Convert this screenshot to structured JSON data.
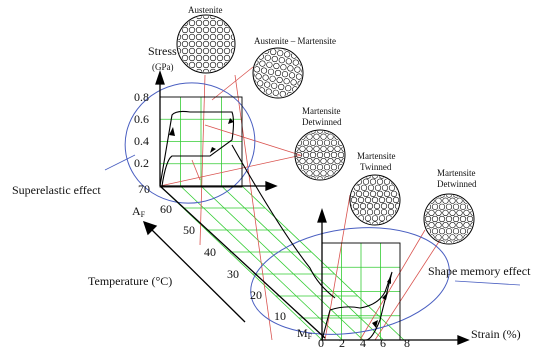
{
  "figure": {
    "y_axis_title": "Stress",
    "y_axis_unit": "(GPa)",
    "x_axis_title": "Strain (%)",
    "temperature_axis_title": "Temperature (°C)",
    "stress_ticks": [
      "0.8",
      "0.6",
      "0.4",
      "0.2"
    ],
    "temperature_ticks": [
      "70",
      "60",
      "50",
      "40",
      "30",
      "20",
      "10"
    ],
    "strain_ticks": [
      "0",
      "2",
      "4",
      "6",
      "8"
    ],
    "af_main": "A",
    "af_sub": "F",
    "mf_main": "M",
    "mf_sub": "F"
  },
  "annotations": {
    "superelastic": "Superelastic effect",
    "shape_memory": "Shape memory effect"
  },
  "lattices": [
    {
      "id": "austenite",
      "label_lines": [
        "Austenite"
      ]
    },
    {
      "id": "austenite-martensite",
      "label_lines": [
        "Austenite – Martensite"
      ]
    },
    {
      "id": "martensite-detwinned-1",
      "label_lines": [
        "Martensite",
        "Detwinned"
      ]
    },
    {
      "id": "martensite-twinned",
      "label_lines": [
        "Martensite",
        "Twinned"
      ]
    },
    {
      "id": "martensite-detwinned-2",
      "label_lines": [
        "Martensite",
        "Detwinned"
      ]
    }
  ],
  "colors": {
    "grid": "#33cc33",
    "leader": "#d9534f",
    "ellipse": "#4a5fc1",
    "curve": "#000000"
  }
}
